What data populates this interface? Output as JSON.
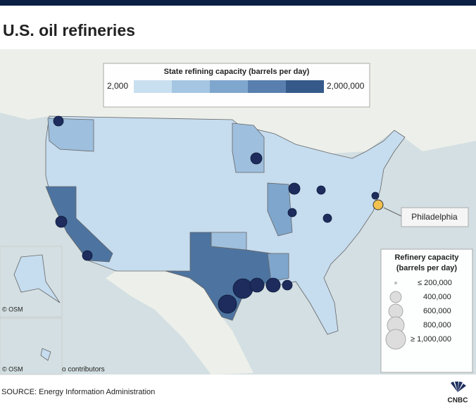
{
  "header": {
    "title": "U.S. oil refineries"
  },
  "map": {
    "color_legend": {
      "title": "State refining capacity (barrels per day)",
      "min_label": "2,000",
      "max_label": "2,000,000"
    },
    "size_legend": {
      "title_lines": [
        "Refinery capacity",
        "(barrels per day)"
      ],
      "labels": [
        "≤ 200,000",
        "400,000",
        "600,000",
        "800,000",
        "≥ 1,000,000"
      ]
    },
    "callout": "Philadelphia",
    "attributions": [
      "© OSM",
      "© OSM",
      "o contributors"
    ]
  },
  "footer": {
    "source": "SOURCE: Energy Information Administration",
    "logo": "CNBC"
  }
}
